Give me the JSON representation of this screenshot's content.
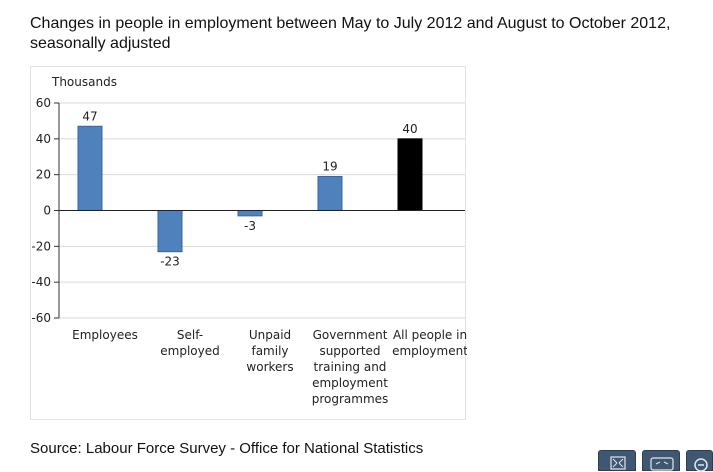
{
  "title": "Changes in people in employment between May to July 2012 and August to October 2012, seasonally adjusted",
  "source": "Source: Labour Force Survey - Office for National Statistics",
  "toolbar": {
    "icons": [
      "expand-icon",
      "embed-icon",
      "zoom-out-icon"
    ]
  },
  "chart_data": {
    "type": "bar",
    "title": "Changes in people in employment between May to July 2012 and August to October 2012, seasonally adjusted",
    "ylabel": "Thousands",
    "xlabel": "",
    "ylim": [
      -60,
      60
    ],
    "yticks": [
      60,
      40,
      20,
      0,
      -20,
      -40,
      -60
    ],
    "ytick_labels": [
      "60",
      "40",
      "20",
      "0",
      "-20",
      "-40",
      "-60"
    ],
    "grid": true,
    "categories": [
      [
        "Employees"
      ],
      [
        "Self-",
        "employed"
      ],
      [
        "Unpaid",
        "family",
        "workers"
      ],
      [
        "Government",
        "supported",
        "training and",
        "employment",
        "programmes"
      ],
      [
        "All people in",
        "employment"
      ]
    ],
    "values": [
      47,
      -23,
      -3,
      19,
      40
    ],
    "data_labels": [
      "47",
      "-23",
      "-3",
      "19",
      "40"
    ],
    "colors": [
      "#4f81bd",
      "#4f81bd",
      "#4f81bd",
      "#4f81bd",
      "#000000"
    ]
  }
}
